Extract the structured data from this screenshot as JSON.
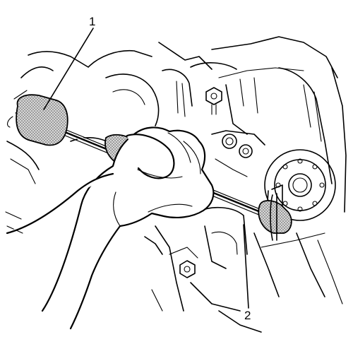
{
  "callouts": [
    {
      "id": "1",
      "label": "1"
    },
    {
      "id": "2",
      "label": "2"
    }
  ],
  "colors": {
    "line": "#000000",
    "background": "#ffffff",
    "stipple": "#9a9a9a"
  }
}
